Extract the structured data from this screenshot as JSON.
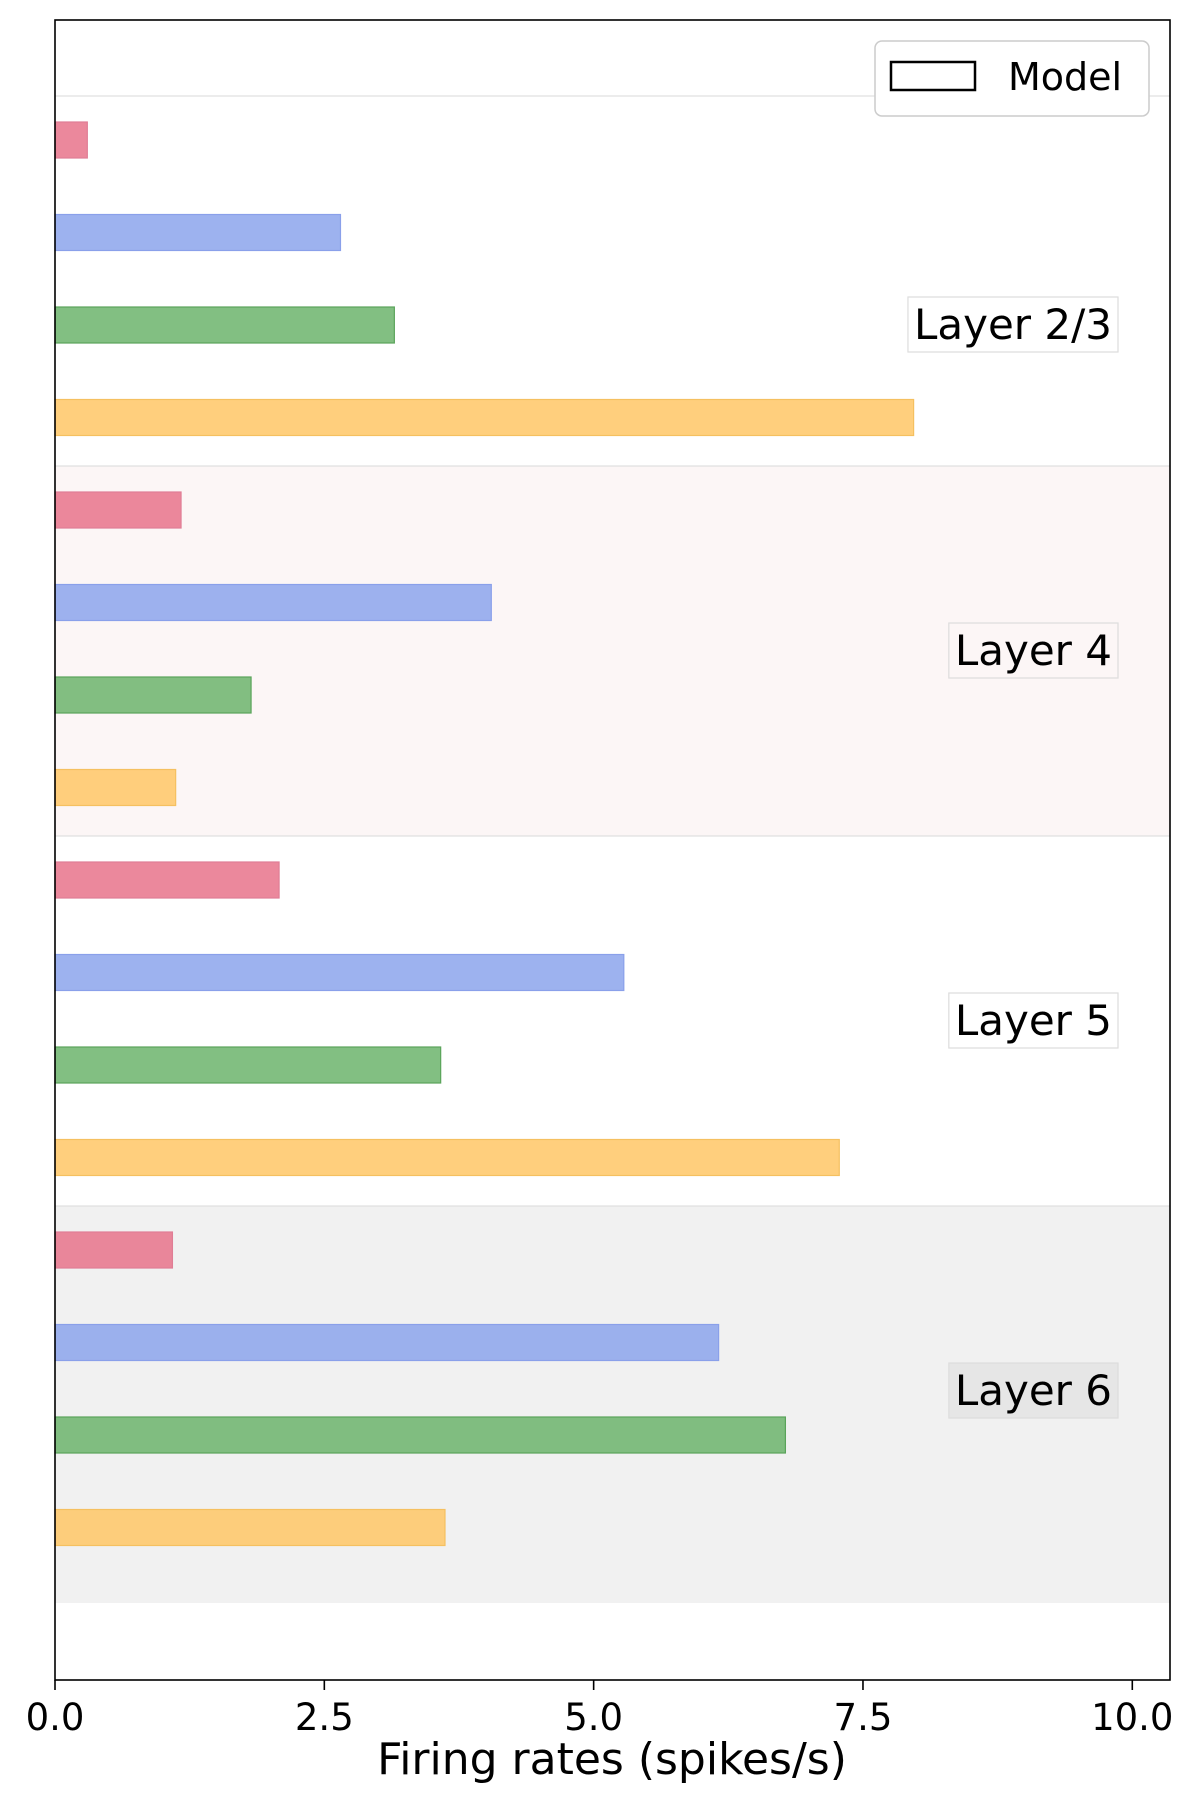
{
  "chart_data": {
    "type": "bar",
    "orientation": "horizontal",
    "xlabel": "Firing rates (spikes/s)",
    "ylabel": "",
    "xlim": [
      0.0,
      10.35
    ],
    "xticks": [
      0.0,
      2.5,
      5.0,
      7.5,
      10.0
    ],
    "xtick_labels": [
      "0.0",
      "2.5",
      "5.0",
      "7.5",
      "10.0"
    ],
    "legend": {
      "entries": [
        "Model"
      ],
      "placement": "top-right"
    },
    "layers": [
      {
        "label": "Layer 2/3",
        "background": "#ffffff",
        "label_box_color": "#ffffff",
        "values": [
          0.3,
          2.65,
          3.15,
          7.97
        ]
      },
      {
        "label": "Layer 4",
        "background": "#fcf6f6",
        "label_box_color": "#fcf6f6",
        "values": [
          1.17,
          4.05,
          1.82,
          1.12
        ]
      },
      {
        "label": "Layer 5",
        "background": "#ffffff",
        "label_box_color": "#ffffff",
        "values": [
          2.08,
          5.28,
          3.58,
          7.28
        ]
      },
      {
        "label": "Layer 6",
        "background": "#f1f1f1",
        "label_box_color": "#e6e6e6",
        "values": [
          1.09,
          6.16,
          6.78,
          3.62
        ]
      }
    ],
    "bar_colors": [
      "#e8738b",
      "#8ca4ec",
      "#6cb46c",
      "#ffc766"
    ],
    "bar_edge_colors": [
      "#e07d95",
      "#8aa0ea",
      "#5aa45a",
      "#f5c060"
    ]
  }
}
